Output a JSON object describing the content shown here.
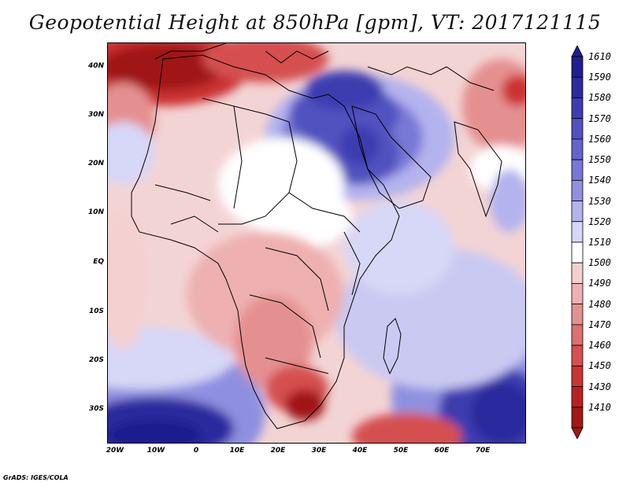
{
  "title": "Geopotential Height at 850hPa [gpm], VT: 2017121115",
  "credit": "GrADS: IGES/COLA",
  "map": {
    "y_axis_labels": [
      "40N",
      "30N",
      "20N",
      "10N",
      "EQ",
      "10S",
      "20S",
      "30S"
    ],
    "x_axis_labels": [
      "20W",
      "10W",
      "0",
      "10E",
      "20E",
      "30E",
      "40E",
      "50E",
      "60E",
      "70E"
    ]
  },
  "colorbar": {
    "levels": [
      "1610",
      "1590",
      "1580",
      "1570",
      "1560",
      "1550",
      "1540",
      "1530",
      "1520",
      "1510",
      "1500",
      "1490",
      "1480",
      "1470",
      "1460",
      "1450",
      "1430",
      "1410"
    ],
    "colors": [
      "#1f1f8f",
      "#2b2b9e",
      "#3e3eb0",
      "#5151c0",
      "#6464cc",
      "#7878d6",
      "#9090e0",
      "#b3b3ee",
      "#d7d7f7",
      "#ffffff",
      "#f5d0d0",
      "#eeb0b0",
      "#e59090",
      "#dd7070",
      "#d55050",
      "#cc3333",
      "#bb2020",
      "#a01818"
    ]
  }
}
